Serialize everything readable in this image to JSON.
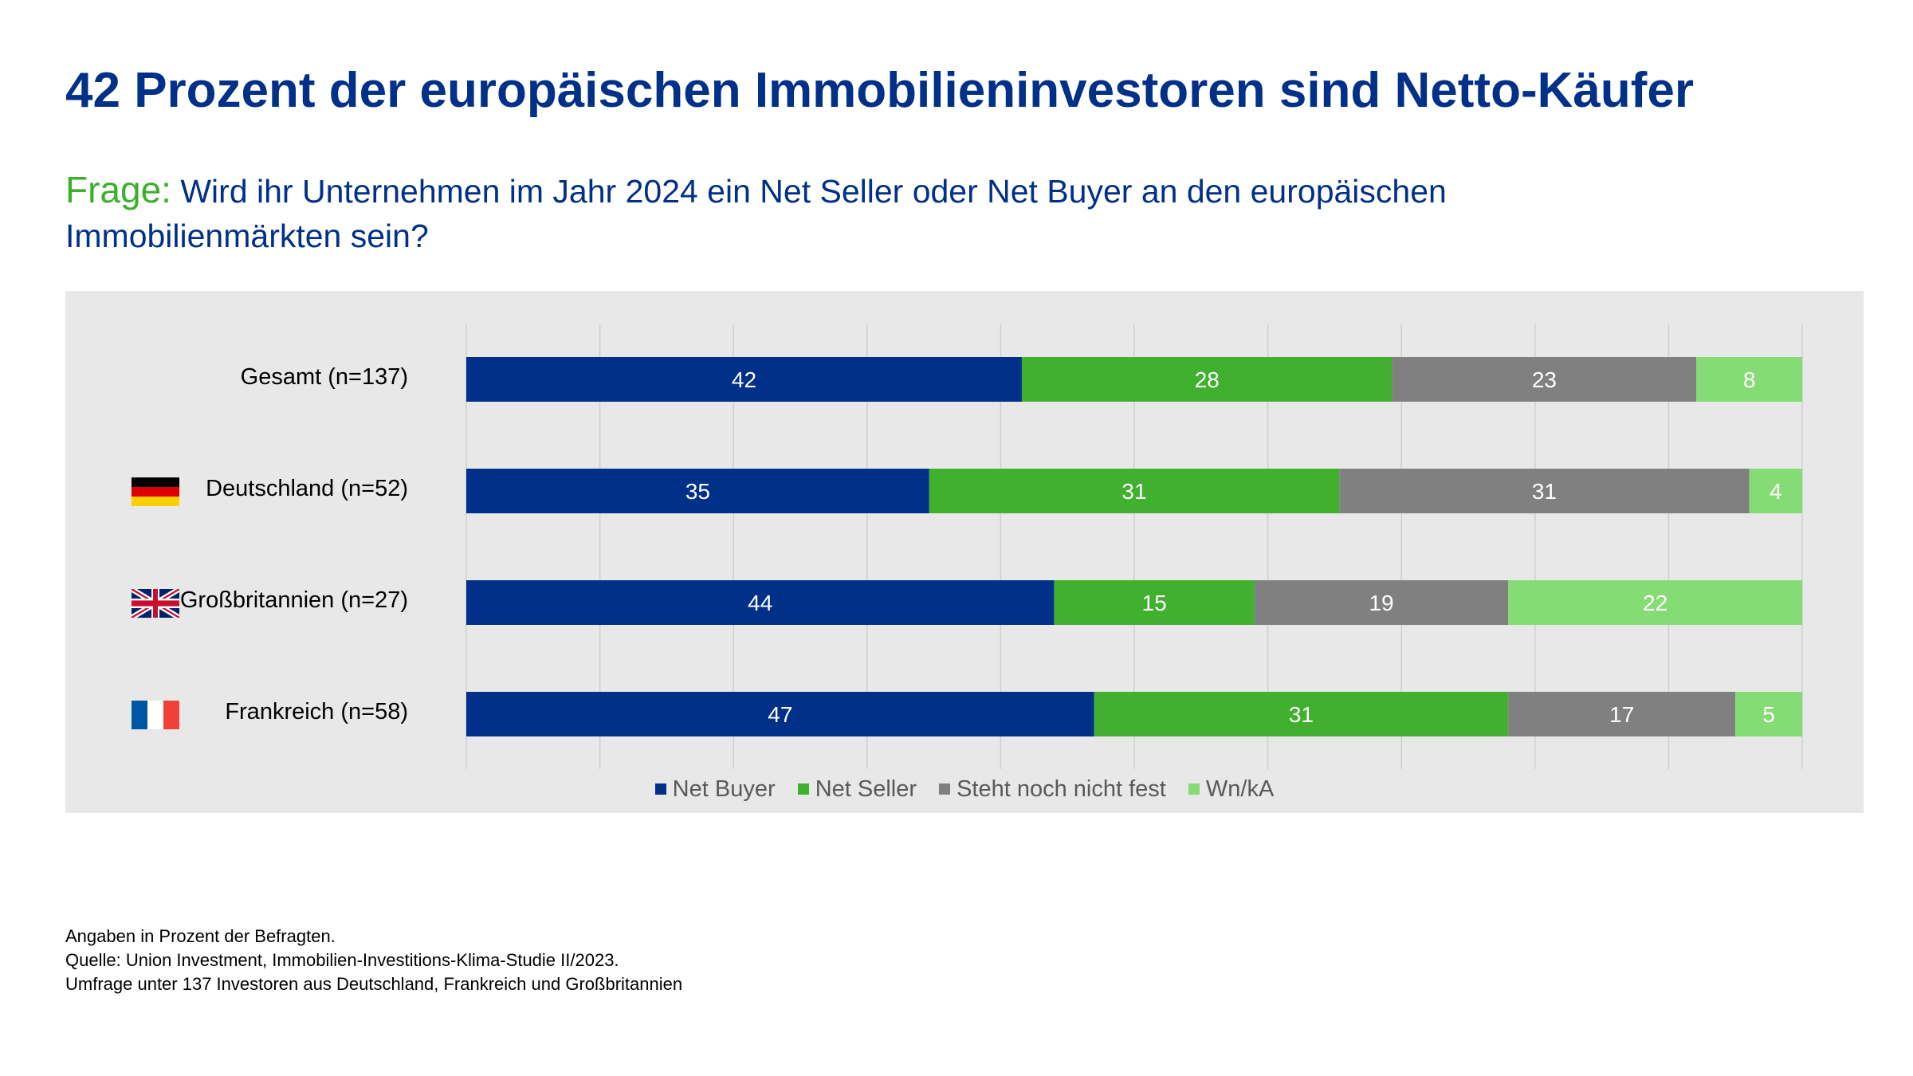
{
  "title": "42 Prozent der europäischen Immobilieninvestoren sind Netto-Käufer",
  "question": {
    "label": "Frage:",
    "text": "Wird ihr Unternehmen im Jahr 2024 ein Net Seller oder Net Buyer an den europäischen Immobilienmärkten sein?"
  },
  "flags": [
    {
      "row": 1,
      "icon": "germany-flag-icon"
    },
    {
      "row": 2,
      "icon": "uk-flag-icon"
    },
    {
      "row": 3,
      "icon": "france-flag-icon"
    }
  ],
  "chart_data": {
    "type": "bar",
    "orientation": "horizontal",
    "stacked": true,
    "categories": [
      "Gesamt (n=137)",
      "Deutschland (n=52)",
      "Großbritannien (n=27)",
      "Frankreich (n=58)"
    ],
    "series": [
      {
        "name": "Net Buyer",
        "color": "#003087",
        "values": [
          42,
          35,
          44,
          47
        ]
      },
      {
        "name": "Net Seller",
        "color": "#41b02f",
        "values": [
          28,
          31,
          15,
          31
        ]
      },
      {
        "name": "Steht noch nicht fest",
        "color": "#808080",
        "values": [
          23,
          31,
          19,
          17
        ]
      },
      {
        "name": "Wn/kA",
        "color": "#86dc74",
        "values": [
          8,
          4,
          22,
          5
        ]
      }
    ],
    "xlim": [
      0,
      100
    ],
    "grid": true,
    "legend_position": "bottom",
    "data_labels": true
  },
  "footer": {
    "lines": [
      "Angaben in Prozent der Befragten.",
      "Quelle: Union Investment, Immobilien-Investitions-Klima-Studie II/2023.",
      "Umfrage unter 137 Investoren aus Deutschland, Frankreich und Großbritannien"
    ]
  }
}
